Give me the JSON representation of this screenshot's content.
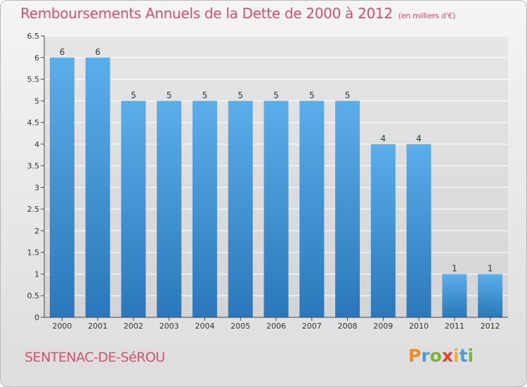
{
  "title": "Remboursements Annuels de la Dette de 2000 à 2012",
  "subtitle": "(en milliers d'€)",
  "city": "SENTENAC-DE-SéROU",
  "logo": {
    "letters": [
      "P",
      "r",
      "o",
      "x",
      "i",
      "t",
      "i"
    ]
  },
  "colors": {
    "title": "#d6506f",
    "bar_top": "#5aaee9",
    "bar_bottom": "#2a78bb",
    "grid": "#ffffff"
  },
  "chart_data": {
    "type": "bar",
    "categories": [
      "2000",
      "2001",
      "2002",
      "2003",
      "2004",
      "2005",
      "2006",
      "2007",
      "2008",
      "2009",
      "2010",
      "2011",
      "2012"
    ],
    "values": [
      6,
      6,
      5,
      5,
      5,
      5,
      5,
      5,
      5,
      4,
      4,
      1,
      1
    ],
    "data_labels": [
      "6",
      "6",
      "5",
      "5",
      "5",
      "5",
      "5",
      "5",
      "5",
      "4",
      "4",
      "1",
      "1"
    ],
    "yticks": [
      "0",
      "0.5",
      "1",
      "1.5",
      "2",
      "2.5",
      "3",
      "3.5",
      "4",
      "4.5",
      "5",
      "5.5",
      "6",
      "6.5"
    ],
    "ylim": [
      0,
      6.5
    ],
    "xlabel": "",
    "ylabel": "",
    "grid": true
  }
}
